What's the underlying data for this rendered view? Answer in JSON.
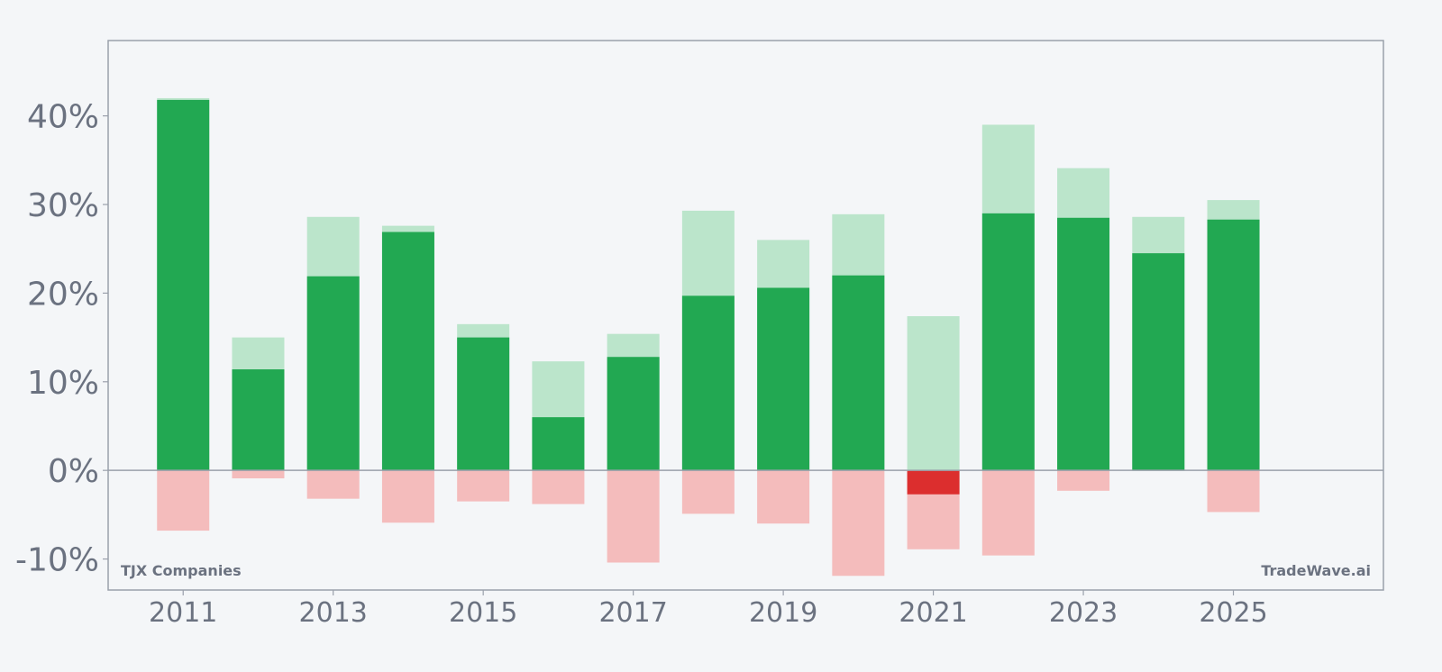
{
  "chart_data": {
    "type": "bar",
    "company": "TJX Companies",
    "brand": "TradeWave.ai",
    "years": [
      2011,
      2012,
      2013,
      2014,
      2015,
      2016,
      2017,
      2018,
      2019,
      2020,
      2021,
      2022,
      2023,
      2024,
      2025
    ],
    "series": [
      {
        "name": "",
        "values": [
          41.8,
          11.4,
          21.9,
          26.9,
          15.0,
          6.0,
          12.8,
          19.7,
          20.6,
          22.0,
          -2.7,
          29.0,
          28.5,
          24.5,
          28.3
        ]
      },
      {
        "name": "",
        "values": [
          42.0,
          15.0,
          28.6,
          27.6,
          16.5,
          12.3,
          15.4,
          29.3,
          26.0,
          28.9,
          17.4,
          39.0,
          34.1,
          28.6,
          30.5
        ]
      },
      {
        "name": "",
        "values": [
          -6.8,
          -0.9,
          -3.2,
          -5.9,
          -3.5,
          -3.8,
          -10.4,
          -4.9,
          -6.0,
          -11.9,
          -8.9,
          -9.6,
          -2.3,
          0,
          -4.7
        ]
      }
    ],
    "ylim": [
      -13.5,
      48.5
    ],
    "xlim": [
      2010,
      2027
    ],
    "yticks": [
      -10,
      0,
      10,
      20,
      30,
      40
    ],
    "ytick_labels": [
      "-10%",
      "0%",
      "10%",
      "20%",
      "30%",
      "40%"
    ],
    "xticks": [
      2011,
      2013,
      2015,
      2017,
      2019,
      2021,
      2023,
      2025
    ],
    "xtick_labels": [
      "2011",
      "2013",
      "2015",
      "2017",
      "2019",
      "2021",
      "2023",
      "2025"
    ],
    "colors": {
      "positive": "#22a852",
      "negative": "#dc2e2e",
      "max_band": "#bbe5cb",
      "min_band": "#f4bcbc",
      "axis": "#9aa0ab",
      "text": "#6b7280",
      "background": "#f4f6f8"
    }
  }
}
